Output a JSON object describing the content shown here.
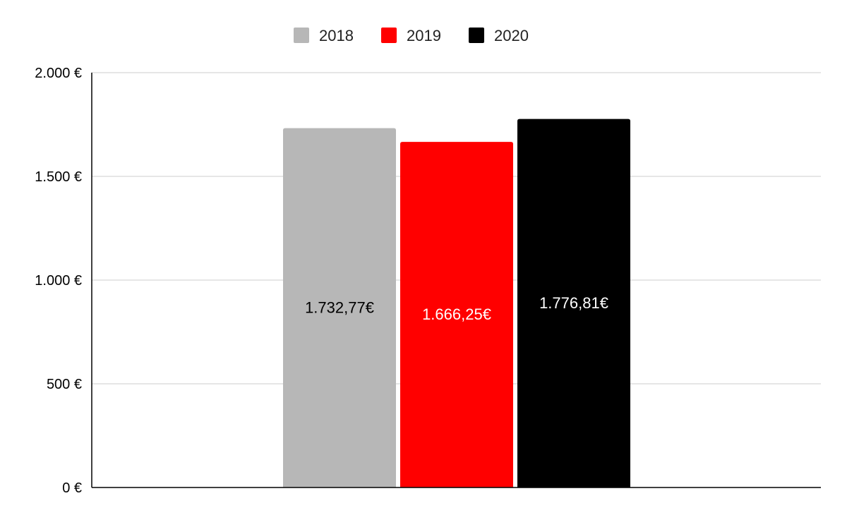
{
  "chart_data": {
    "type": "bar",
    "categories": [
      ""
    ],
    "series": [
      {
        "name": "2018",
        "values": [
          1732.77
        ],
        "label": "1.732,77€",
        "color": "#b7b7b7",
        "label_color": "#000000"
      },
      {
        "name": "2019",
        "values": [
          1666.25
        ],
        "label": "1.666,25€",
        "color": "#ff0000",
        "label_color": "#ffffff"
      },
      {
        "name": "2020",
        "values": [
          1776.81
        ],
        "label": "1.776,81€",
        "color": "#000000",
        "label_color": "#ffffff"
      }
    ],
    "title": "",
    "xlabel": "",
    "ylabel": "",
    "ylim": [
      0,
      2000
    ],
    "yticks": [
      0,
      500,
      1000,
      1500,
      2000
    ],
    "ytick_labels": [
      "0 €",
      "500 €",
      "1.000 €",
      "1.500 €",
      "2.000 €"
    ],
    "grid": true,
    "legend_position": "top-center",
    "gridline_color": "#cccccc",
    "axis_color": "#000000"
  }
}
